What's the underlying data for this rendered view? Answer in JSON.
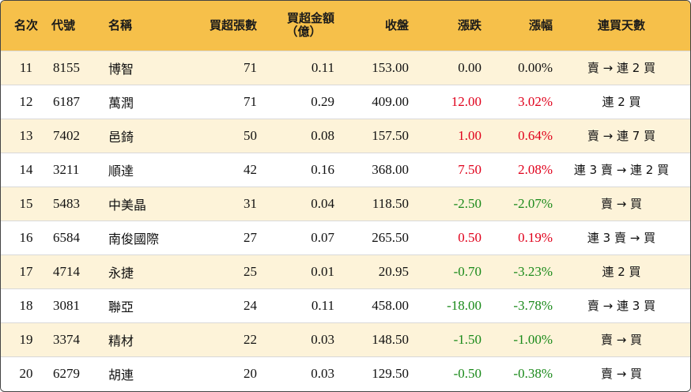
{
  "headers": {
    "rank": "名次",
    "code": "代號",
    "name": "名稱",
    "net_buy_lots": "買超張數",
    "net_buy_amount_line1": "買超金額",
    "net_buy_amount_line2": "（億）",
    "close": "收盤",
    "change": "漲跌",
    "change_pct": "漲幅",
    "consec_days": "連買天數"
  },
  "colors": {
    "header_bg": "#f6c04a",
    "row_alt_bg": "#fdf3d9",
    "up": "#e0001b",
    "down": "#1a8a1a"
  },
  "rows": [
    {
      "rank": "11",
      "code": "8155",
      "name": "博智",
      "lots": "71",
      "amount": "0.11",
      "close": "153.00",
      "change": "0.00",
      "pct": "0.00%",
      "days": "賣 → 連 2 買",
      "dir": "flat"
    },
    {
      "rank": "12",
      "code": "6187",
      "name": "萬潤",
      "lots": "71",
      "amount": "0.29",
      "close": "409.00",
      "change": "12.00",
      "pct": "3.02%",
      "days": "連 2 買",
      "dir": "up"
    },
    {
      "rank": "13",
      "code": "7402",
      "name": "邑錡",
      "lots": "50",
      "amount": "0.08",
      "close": "157.50",
      "change": "1.00",
      "pct": "0.64%",
      "days": "賣 → 連 7 買",
      "dir": "up"
    },
    {
      "rank": "14",
      "code": "3211",
      "name": "順達",
      "lots": "42",
      "amount": "0.16",
      "close": "368.00",
      "change": "7.50",
      "pct": "2.08%",
      "days": "連 3 賣 → 連 2 買",
      "dir": "up"
    },
    {
      "rank": "15",
      "code": "5483",
      "name": "中美晶",
      "lots": "31",
      "amount": "0.04",
      "close": "118.50",
      "change": "-2.50",
      "pct": "-2.07%",
      "days": "賣 → 買",
      "dir": "down"
    },
    {
      "rank": "16",
      "code": "6584",
      "name": "南俊國際",
      "lots": "27",
      "amount": "0.07",
      "close": "265.50",
      "change": "0.50",
      "pct": "0.19%",
      "days": "連 3 賣 → 買",
      "dir": "up"
    },
    {
      "rank": "17",
      "code": "4714",
      "name": "永捷",
      "lots": "25",
      "amount": "0.01",
      "close": "20.95",
      "change": "-0.70",
      "pct": "-3.23%",
      "days": "連 2 買",
      "dir": "down"
    },
    {
      "rank": "18",
      "code": "3081",
      "name": "聯亞",
      "lots": "24",
      "amount": "0.11",
      "close": "458.00",
      "change": "-18.00",
      "pct": "-3.78%",
      "days": "賣 → 連 3 買",
      "dir": "down"
    },
    {
      "rank": "19",
      "code": "3374",
      "name": "精材",
      "lots": "22",
      "amount": "0.03",
      "close": "148.50",
      "change": "-1.50",
      "pct": "-1.00%",
      "days": "賣 → 買",
      "dir": "down"
    },
    {
      "rank": "20",
      "code": "6279",
      "name": "胡連",
      "lots": "20",
      "amount": "0.03",
      "close": "129.50",
      "change": "-0.50",
      "pct": "-0.38%",
      "days": "賣 → 買",
      "dir": "down"
    }
  ]
}
